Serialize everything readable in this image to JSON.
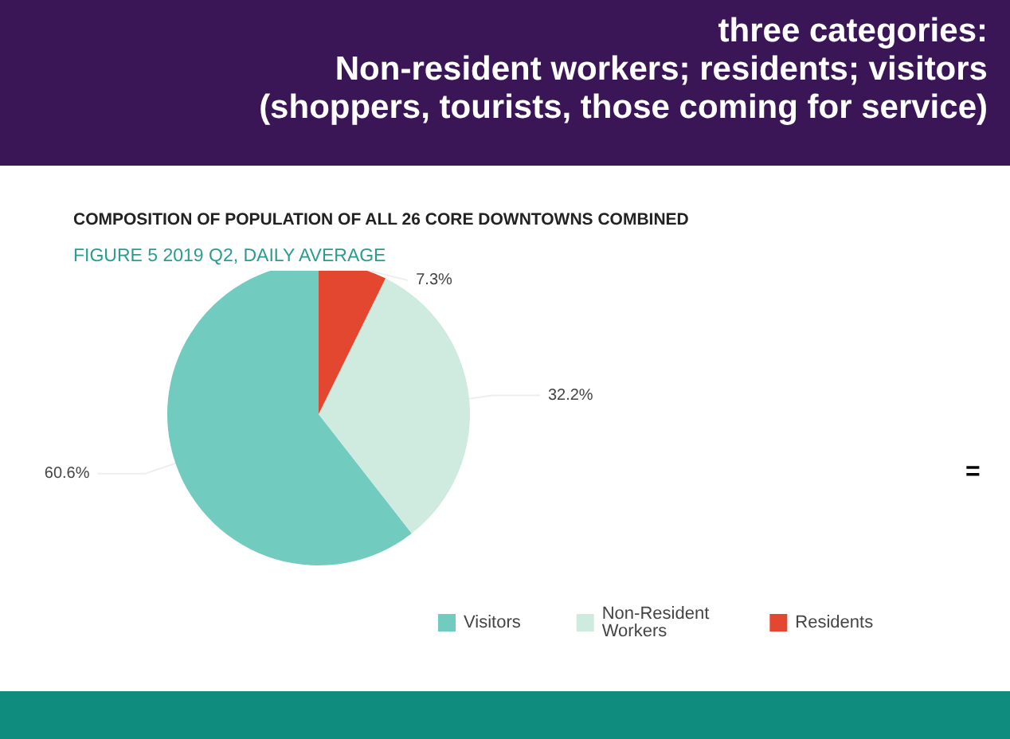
{
  "chart_data": {
    "type": "pie",
    "title": "three categories:\nNon-resident workers; residents; visitors\n(shoppers, tourists, those coming for service)",
    "subtitle": "COMPOSITION OF POPULATION OF ALL 26 CORE DOWNTOWNS COMBINED",
    "annotations": [
      "FIGURE 5 2019 Q2, DAILY AVERAGE",
      "="
    ],
    "categories": [
      "Visitors",
      "Non-Resident Workers",
      "Residents"
    ],
    "values": [
      60.6,
      32.2,
      7.3
    ],
    "colors": [
      "#72cbbf",
      "#cfeade",
      "#e3472f"
    ],
    "value_labels": [
      "60.6%",
      "32.2%",
      "7.3%"
    ],
    "legend": "bottom"
  }
}
